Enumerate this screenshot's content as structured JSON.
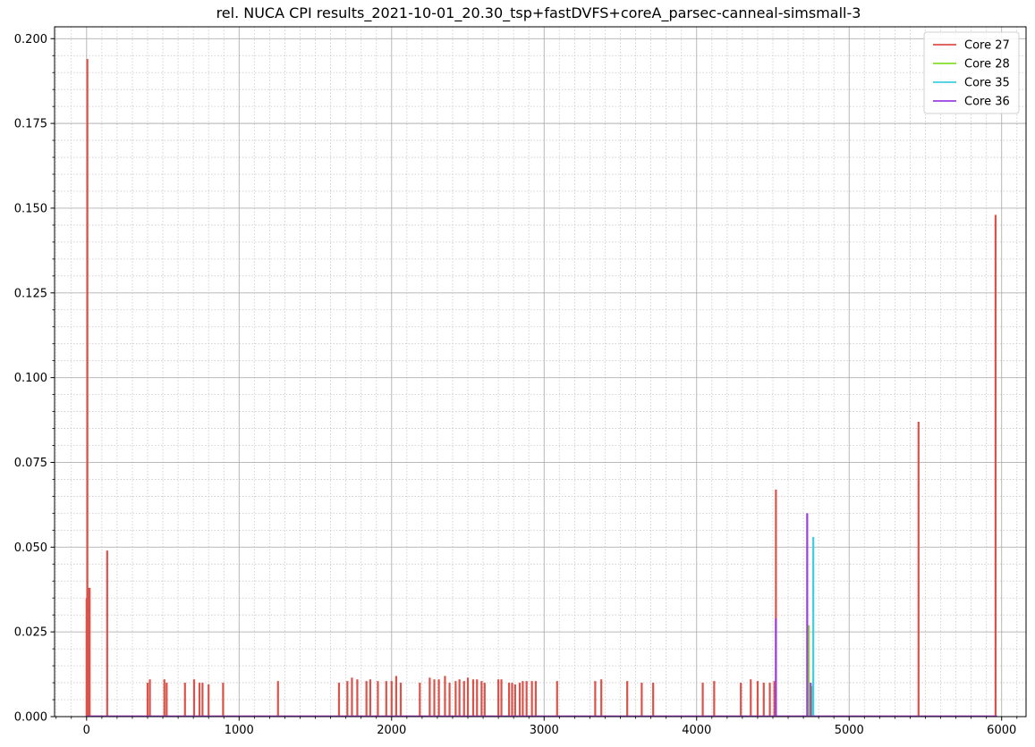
{
  "chart_data": {
    "type": "line",
    "title": "rel. NUCA CPI results_2021-10-01_20.30_tsp+fastDVFS+coreA_parsec-canneal-simsmall-3",
    "xlabel": "",
    "ylabel": "",
    "xlim": [
      -210,
      6160
    ],
    "ylim": [
      0,
      0.2035
    ],
    "grid": true,
    "minor_grid": true,
    "legend_position": "top-right",
    "x_ticks": [
      0,
      1000,
      2000,
      3000,
      4000,
      5000,
      6000
    ],
    "x_tick_labels": [
      "0",
      "1000",
      "2000",
      "3000",
      "4000",
      "5000",
      "6000"
    ],
    "y_ticks": [
      0,
      0.025,
      0.05,
      0.075,
      0.1,
      0.125,
      0.15,
      0.175,
      0.2
    ],
    "y_tick_labels": [
      "0.000",
      "0.025",
      "0.050",
      "0.075",
      "0.100",
      "0.125",
      "0.150",
      "0.175",
      "0.200"
    ],
    "series": [
      {
        "name": "Core 27",
        "color": "#d9534a",
        "spikes": [
          [
            0,
            0.035
          ],
          [
            5,
            0.194
          ],
          [
            12,
            0.038
          ],
          [
            20,
            0.038
          ],
          [
            135,
            0.049
          ],
          [
            400,
            0.01
          ],
          [
            415,
            0.011
          ],
          [
            510,
            0.011
          ],
          [
            525,
            0.01
          ],
          [
            645,
            0.01
          ],
          [
            705,
            0.011
          ],
          [
            740,
            0.01
          ],
          [
            760,
            0.01
          ],
          [
            800,
            0.0095
          ],
          [
            895,
            0.01
          ],
          [
            1255,
            0.0105
          ],
          [
            1655,
            0.01
          ],
          [
            1710,
            0.0105
          ],
          [
            1740,
            0.0115
          ],
          [
            1775,
            0.011
          ],
          [
            1835,
            0.0105
          ],
          [
            1860,
            0.011
          ],
          [
            1910,
            0.0105
          ],
          [
            1965,
            0.0105
          ],
          [
            2000,
            0.0105
          ],
          [
            2030,
            0.012
          ],
          [
            2060,
            0.01
          ],
          [
            2185,
            0.01
          ],
          [
            2250,
            0.0115
          ],
          [
            2280,
            0.011
          ],
          [
            2310,
            0.011
          ],
          [
            2350,
            0.012
          ],
          [
            2380,
            0.01
          ],
          [
            2420,
            0.0105
          ],
          [
            2445,
            0.011
          ],
          [
            2475,
            0.0105
          ],
          [
            2500,
            0.0115
          ],
          [
            2535,
            0.011
          ],
          [
            2560,
            0.011
          ],
          [
            2590,
            0.0105
          ],
          [
            2610,
            0.01
          ],
          [
            2700,
            0.011
          ],
          [
            2720,
            0.011
          ],
          [
            2770,
            0.01
          ],
          [
            2790,
            0.01
          ],
          [
            2810,
            0.0095
          ],
          [
            2840,
            0.01
          ],
          [
            2860,
            0.0105
          ],
          [
            2885,
            0.0105
          ],
          [
            2920,
            0.0105
          ],
          [
            2945,
            0.0105
          ],
          [
            3085,
            0.0105
          ],
          [
            3335,
            0.0105
          ],
          [
            3375,
            0.011
          ],
          [
            3545,
            0.0105
          ],
          [
            3640,
            0.01
          ],
          [
            3715,
            0.01
          ],
          [
            4040,
            0.01
          ],
          [
            4115,
            0.0105
          ],
          [
            4290,
            0.01
          ],
          [
            4355,
            0.011
          ],
          [
            4400,
            0.0105
          ],
          [
            4440,
            0.01
          ],
          [
            4480,
            0.01
          ],
          [
            4510,
            0.0105
          ],
          [
            4520,
            0.067
          ],
          [
            5455,
            0.087
          ],
          [
            5960,
            0.148
          ]
        ]
      },
      {
        "name": "Core 28",
        "color": "#82e02a",
        "spikes": [
          [
            4735,
            0.027
          ],
          [
            4755,
            0.009
          ]
        ]
      },
      {
        "name": "Core 35",
        "color": "#3fcde0",
        "spikes": [
          [
            4765,
            0.053
          ]
        ]
      },
      {
        "name": "Core 36",
        "color": "#9b3fe0",
        "spikes": [
          [
            4520,
            0.029
          ],
          [
            4725,
            0.06
          ],
          [
            4748,
            0.01
          ]
        ]
      }
    ]
  }
}
